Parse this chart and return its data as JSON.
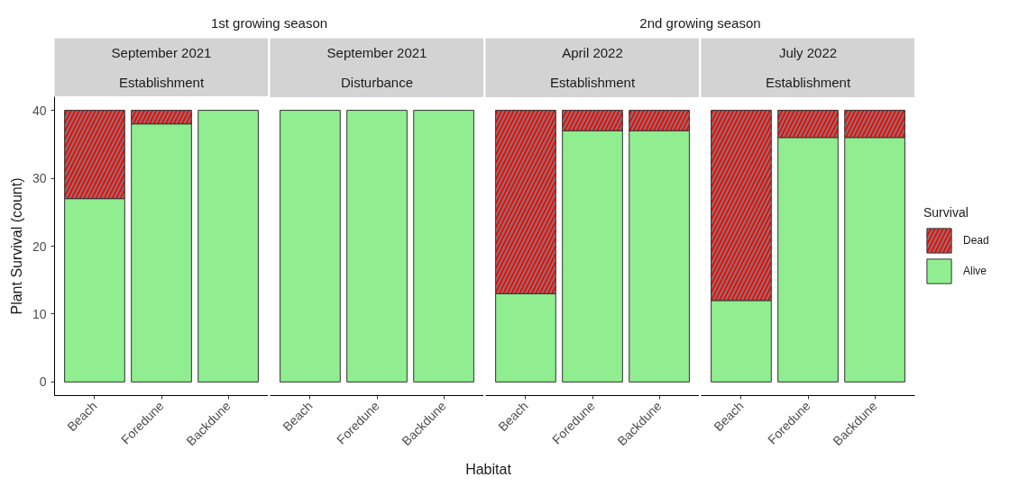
{
  "chart_data": [
    {
      "type": "bar",
      "title": "1st growing season",
      "subtitle": "September 2021\nEstablishment",
      "categories": [
        "Beach",
        "Foredune",
        "Backdune"
      ],
      "series": [
        {
          "color": "#90ee90",
          "values": [
            27,
            38,
            40
          ]
        },
        {
          "color": "#ff0000",
          "values": [
            13,
            2,
            0
          ]
        }
      ],
      "stacked": true,
      "ylabel": "Plant Survival (count)",
      "ylim": [
        -2,
        42
      ],
      "yticks": [
        0,
        10,
        20,
        30,
        40
      ]
    },
    {
      "type": "bar",
      "subtitle": "September 2021\nDisturbance",
      "categories": [
        "Beach",
        "Foredune",
        "Backdune"
      ],
      "series": [
        {
          "color": "#90ee90",
          "values": [
            40,
            40,
            40
          ]
        },
        {
          "color": "#ff0000",
          "values": [
            0,
            0,
            0
          ]
        }
      ],
      "stacked": true,
      "ylim": [
        -2,
        42
      ],
      "tick_labels": "x"
    },
    {
      "type": "bar",
      "title": "2nd growing season",
      "subtitle": "April 2022\nEstablishment",
      "categories": [
        "Beach",
        "Foredune",
        "Backdune"
      ],
      "series": [
        {
          "color": "#90ee90",
          "values": [
            13,
            37,
            37
          ]
        },
        {
          "color": "#ff0000",
          "values": [
            27,
            3,
            3
          ]
        }
      ],
      "stacked": true,
      "xlabel": "Habitat",
      "ylim": [
        -2,
        42
      ],
      "tick_labels": "x"
    },
    {
      "type": "bar",
      "subtitle": "July 2022\nEstablishment",
      "categories": [
        "Beach",
        "Foredune",
        "Backdune"
      ],
      "series": [
        {
          "name": "Alive",
          "color": "#90ee90",
          "values": [
            12,
            36,
            36
          ]
        },
        {
          "name": "Dead",
          "color": "#ff0000",
          "values": [
            28,
            4,
            4
          ]
        }
      ],
      "stacked": true,
      "ylim": [
        -2,
        42
      ],
      "tick_labels": "x",
      "legend": "right",
      "legend_title": "Survival"
    }
  ]
}
